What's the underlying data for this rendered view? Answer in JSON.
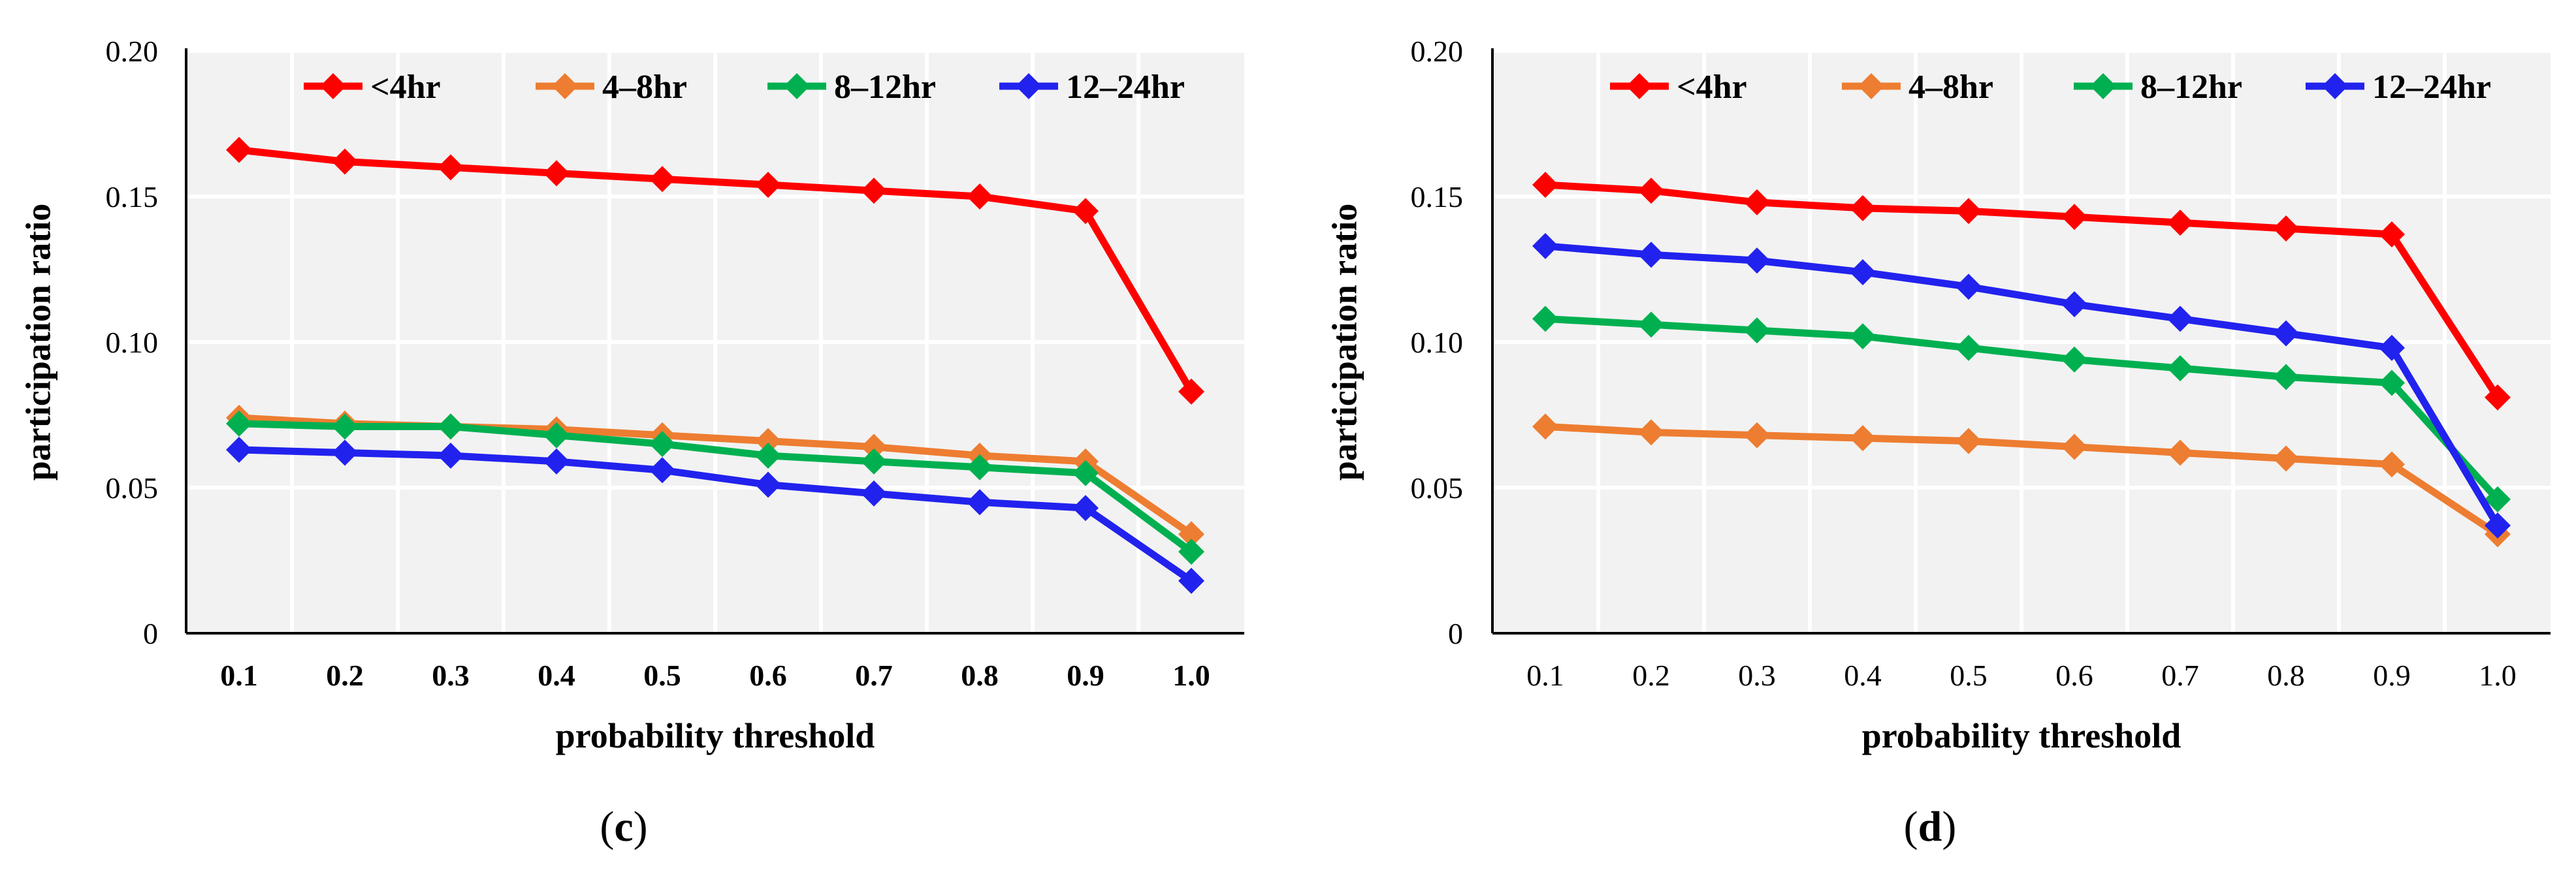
{
  "colors": {
    "lt4": "#ff0000",
    "h4to8": "#ed7d31",
    "h8to12": "#00b050",
    "h12to24": "#2222ee",
    "plot_bg": "#f2f2f2",
    "grid": "#ffffff"
  },
  "chart_data": [
    {
      "type": "line",
      "panel": "c",
      "panel_label_open": "(",
      "panel_label_letter": "c",
      "panel_label_close": ")",
      "xlabel": "probability threshold",
      "ylabel": "participation ratio",
      "x": [
        0.1,
        0.2,
        0.3,
        0.4,
        0.5,
        0.6,
        0.7,
        0.8,
        0.9,
        1.0
      ],
      "x_tick_labels": [
        "0.1",
        "0.2",
        "0.3",
        "0.4",
        "0.5",
        "0.6",
        "0.7",
        "0.8",
        "0.9",
        "1.0"
      ],
      "y_tick_labels": [
        "0",
        "0.05",
        "0.10",
        "0.15",
        "0.20"
      ],
      "y_ticks": [
        0,
        0.05,
        0.1,
        0.15,
        0.2
      ],
      "ylim": [
        0,
        0.2
      ],
      "x_ticks_bold": true,
      "legend": [
        "<4hr",
        "4–8hr",
        "8–12hr",
        "12–24hr"
      ],
      "legend_position": "top-right",
      "series": [
        {
          "name": "<4hr",
          "color_key": "lt4",
          "values": [
            0.166,
            0.162,
            0.16,
            0.158,
            0.156,
            0.154,
            0.152,
            0.15,
            0.145,
            0.083
          ]
        },
        {
          "name": "4–8hr",
          "color_key": "h4to8",
          "values": [
            0.074,
            0.072,
            0.071,
            0.07,
            0.068,
            0.066,
            0.064,
            0.061,
            0.059,
            0.034
          ]
        },
        {
          "name": "8–12hr",
          "color_key": "h8to12",
          "values": [
            0.072,
            0.071,
            0.071,
            0.068,
            0.065,
            0.061,
            0.059,
            0.057,
            0.055,
            0.028
          ]
        },
        {
          "name": "12–24hr",
          "color_key": "h12to24",
          "values": [
            0.063,
            0.062,
            0.061,
            0.059,
            0.056,
            0.051,
            0.048,
            0.045,
            0.043,
            0.018
          ]
        }
      ]
    },
    {
      "type": "line",
      "panel": "d",
      "panel_label_open": "(",
      "panel_label_letter": "d",
      "panel_label_close": ")",
      "xlabel": "probability threshold",
      "ylabel": "participation ratio",
      "x": [
        0.1,
        0.2,
        0.3,
        0.4,
        0.5,
        0.6,
        0.7,
        0.8,
        0.9,
        1.0
      ],
      "x_tick_labels": [
        "0.1",
        "0.2",
        "0.3",
        "0.4",
        "0.5",
        "0.6",
        "0.7",
        "0.8",
        "0.9",
        "1.0"
      ],
      "y_tick_labels": [
        "0",
        "0.05",
        "0.10",
        "0.15",
        "0.20"
      ],
      "y_ticks": [
        0,
        0.05,
        0.1,
        0.15,
        0.2
      ],
      "ylim": [
        0,
        0.2
      ],
      "x_ticks_bold": false,
      "legend": [
        "<4hr",
        "4–8hr",
        "8–12hr",
        "12–24hr"
      ],
      "legend_position": "top-right",
      "series": [
        {
          "name": "<4hr",
          "color_key": "lt4",
          "values": [
            0.154,
            0.152,
            0.148,
            0.146,
            0.145,
            0.143,
            0.141,
            0.139,
            0.137,
            0.081
          ]
        },
        {
          "name": "4–8hr",
          "color_key": "h4to8",
          "values": [
            0.071,
            0.069,
            0.068,
            0.067,
            0.066,
            0.064,
            0.062,
            0.06,
            0.058,
            0.034
          ]
        },
        {
          "name": "8–12hr",
          "color_key": "h8to12",
          "values": [
            0.108,
            0.106,
            0.104,
            0.102,
            0.098,
            0.094,
            0.091,
            0.088,
            0.086,
            0.046
          ]
        },
        {
          "name": "12–24hr",
          "color_key": "h12to24",
          "values": [
            0.133,
            0.13,
            0.128,
            0.124,
            0.119,
            0.113,
            0.108,
            0.103,
            0.098,
            0.037
          ]
        }
      ]
    }
  ]
}
